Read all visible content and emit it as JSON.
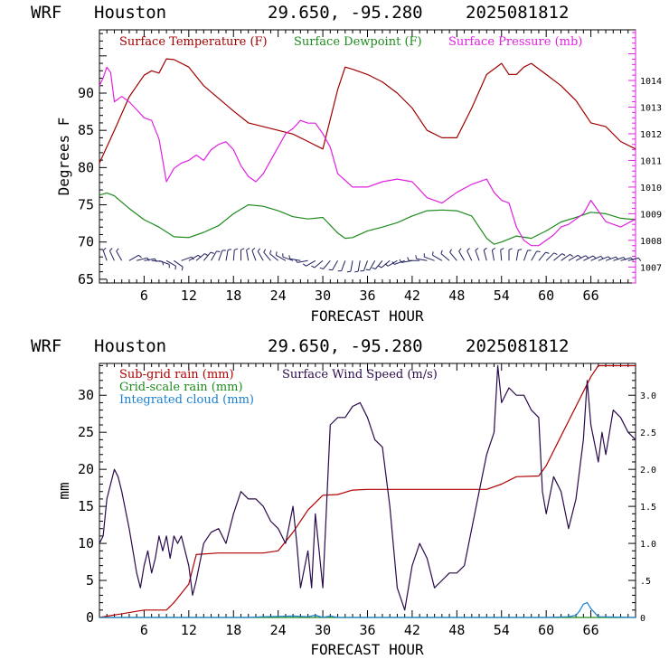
{
  "header": {
    "model": "WRF",
    "location": "Houston",
    "coords": "29.650, -95.280",
    "init": "2025081812"
  },
  "colors": {
    "temperature": "#a00000",
    "dewpoint": "#1e8a1e",
    "pressure": "#e020e0",
    "wind": "#2a0a4a",
    "subgrid_rain": "#b00000",
    "gridscale_rain": "#1e8a1e",
    "cloud": "#1a7fd0",
    "right_axis_top": "#e020e0"
  },
  "chart_data": [
    {
      "type": "line",
      "title": "",
      "xlabel": "FORECAST HOUR",
      "ylabel": "Degrees F",
      "xlim": [
        0,
        72
      ],
      "ylim": [
        64.5,
        98.5
      ],
      "y2lim": [
        1006.4,
        1015.9
      ],
      "xticks": [
        6,
        12,
        18,
        24,
        30,
        36,
        42,
        48,
        54,
        60,
        66
      ],
      "yticks": [
        65,
        70,
        75,
        80,
        85,
        90
      ],
      "y2ticks": [
        1007,
        1008,
        1009,
        1010,
        1011,
        1012,
        1013,
        1014
      ],
      "legend_placement": "top",
      "series": [
        {
          "name": "Surface Temperature (F)",
          "color_key": "temperature",
          "axis": "left",
          "x": [
            0,
            2,
            4,
            6,
            7,
            8,
            9,
            10,
            12,
            14,
            16,
            18,
            20,
            22,
            24,
            26,
            28,
            30,
            32,
            33,
            34,
            36,
            38,
            40,
            42,
            44,
            46,
            48,
            50,
            52,
            54,
            55,
            56,
            57,
            58,
            60,
            62,
            64,
            66,
            68,
            70,
            72
          ],
          "y": [
            80.6,
            85,
            89.5,
            92.4,
            93,
            92.7,
            94.6,
            94.5,
            93.5,
            91,
            89.3,
            87.6,
            86,
            85.5,
            85,
            84.5,
            83.5,
            82.5,
            90.5,
            93.5,
            93.2,
            92.5,
            91.5,
            90,
            88,
            85,
            84,
            84,
            88,
            92.5,
            94,
            92.5,
            92.5,
            93.5,
            94,
            92.5,
            91,
            89,
            86,
            85.5,
            83.5,
            82.5
          ]
        },
        {
          "name": "Surface Dewpoint (F)",
          "color_key": "dewpoint",
          "axis": "left",
          "x": [
            0,
            1,
            2,
            4,
            6,
            8,
            10,
            12,
            14,
            16,
            18,
            20,
            22,
            24,
            26,
            28,
            30,
            32,
            33,
            34,
            36,
            38,
            40,
            42,
            44,
            46,
            48,
            50,
            52,
            53,
            54,
            56,
            58,
            60,
            62,
            64,
            66,
            68,
            70,
            72
          ],
          "y": [
            76.3,
            76.6,
            76.2,
            74.5,
            73,
            72,
            70.7,
            70.6,
            71.3,
            72.2,
            73.8,
            75,
            74.8,
            74.2,
            73.4,
            73.1,
            73.3,
            71.2,
            70.5,
            70.6,
            71.5,
            72,
            72.6,
            73.5,
            74.2,
            74.3,
            74.2,
            73.5,
            70.5,
            69.7,
            70,
            70.8,
            70.5,
            71.5,
            72.7,
            73.3,
            74,
            73.8,
            73.2,
            73
          ]
        },
        {
          "name": "Surface Pressure (mb)",
          "color_key": "pressure",
          "axis": "right",
          "x": [
            0,
            0.5,
            1,
            1.5,
            2,
            3,
            4,
            5,
            6,
            7,
            8,
            9,
            10,
            11,
            12,
            13,
            14,
            15,
            16,
            17,
            18,
            19,
            20,
            21,
            22,
            23,
            24,
            25,
            26,
            27,
            28,
            29,
            30,
            31,
            32,
            34,
            36,
            38,
            40,
            42,
            44,
            46,
            48,
            50,
            52,
            53,
            54,
            55,
            56,
            57,
            58,
            59,
            60,
            61,
            62,
            63,
            64,
            65,
            66,
            67,
            68,
            70,
            72
          ],
          "y": [
            1013.8,
            1014.1,
            1014.5,
            1014.3,
            1013.2,
            1013.4,
            1013.2,
            1012.9,
            1012.6,
            1012.5,
            1011.8,
            1010.2,
            1010.7,
            1010.9,
            1011.0,
            1011.2,
            1011.0,
            1011.4,
            1011.6,
            1011.7,
            1011.4,
            1010.8,
            1010.4,
            1010.2,
            1010.5,
            1011.0,
            1011.5,
            1012.0,
            1012.2,
            1012.5,
            1012.4,
            1012.4,
            1012.0,
            1011.5,
            1010.5,
            1010.0,
            1010.0,
            1010.2,
            1010.3,
            1010.2,
            1009.6,
            1009.4,
            1009.8,
            1010.1,
            1010.3,
            1009.8,
            1009.5,
            1009.4,
            1008.5,
            1008.0,
            1007.8,
            1007.8,
            1008.0,
            1008.2,
            1008.5,
            1008.6,
            1008.8,
            1009.0,
            1009.5,
            1009.1,
            1008.7,
            1008.5,
            1008.8
          ]
        }
      ],
      "wind_barbs": {
        "y": 67.5,
        "angles_deg": [
          -20,
          -25,
          -30,
          60,
          75,
          80,
          95,
          110,
          120,
          125,
          70,
          60,
          50,
          40,
          30,
          20,
          10,
          5,
          0,
          -10,
          -20,
          -30,
          -40,
          -50,
          -60,
          -70,
          -80,
          -100,
          -120,
          -130,
          -140,
          -150,
          -160,
          -170,
          -170,
          -160,
          -150,
          -140,
          -130,
          -120,
          -110,
          -100,
          -90,
          -80,
          -70,
          -60,
          -50,
          -40,
          -30,
          -25,
          -20,
          -15,
          -10,
          -5,
          0,
          10,
          20,
          30,
          40,
          45,
          50,
          55,
          60,
          62,
          64,
          66,
          68,
          70,
          72,
          74,
          76
        ]
      }
    },
    {
      "type": "line",
      "title": "",
      "xlabel": "FORECAST HOUR",
      "ylabel": "mm",
      "xlim": [
        0,
        72
      ],
      "ylim": [
        0,
        34.3
      ],
      "y2lim": [
        0,
        3.43
      ],
      "xticks": [
        6,
        12,
        18,
        24,
        30,
        36,
        42,
        48,
        54,
        60,
        66
      ],
      "yticks": [
        0,
        5,
        10,
        15,
        20,
        25,
        30
      ],
      "y2ticks": [
        "0",
        ".5",
        "1.0",
        "1.5",
        "2.0",
        "2.5",
        "3.0"
      ],
      "legend_placement": "top-left",
      "series": [
        {
          "name": "Sub-grid rain (mm)",
          "color_key": "subgrid_rain",
          "axis": "left",
          "x": [
            0,
            6,
            9,
            10,
            12,
            13,
            16,
            22,
            24,
            26,
            28,
            30,
            32,
            34,
            36,
            40,
            44,
            48,
            52,
            54,
            56,
            59,
            60,
            62,
            64,
            66,
            67,
            70,
            72
          ],
          "y": [
            0,
            1.0,
            1.0,
            2.0,
            4.5,
            8.5,
            8.7,
            8.7,
            9.0,
            11.5,
            14.5,
            16.5,
            16.6,
            17.2,
            17.3,
            17.3,
            17.3,
            17.3,
            17.3,
            18.0,
            19.0,
            19.1,
            20.5,
            24.5,
            28.5,
            32.5,
            34.0,
            34.0,
            34.0
          ]
        },
        {
          "name": "Grid-scale rain (mm)",
          "color_key": "gridscale_rain",
          "axis": "left",
          "x": [
            0,
            72
          ],
          "y": [
            0,
            0
          ]
        },
        {
          "name": "Integrated cloud (mm)",
          "color_key": "cloud",
          "axis": "left",
          "x": [
            0,
            20,
            22,
            24,
            26,
            28,
            29,
            30,
            31,
            32,
            60,
            63,
            64,
            64.5,
            65,
            65.5,
            66,
            67,
            72
          ],
          "y": [
            0,
            0,
            0.1,
            0.15,
            0.2,
            0.1,
            0.3,
            0,
            0.2,
            0,
            0,
            0.1,
            0.3,
            0.9,
            1.8,
            2.0,
            1.2,
            0.1,
            0
          ]
        },
        {
          "name": "Surface Wind Speed (m/s)",
          "color_key": "wind",
          "axis": "right",
          "x": [
            0,
            0.5,
            1,
            2,
            2.5,
            3,
            4,
            5,
            5.5,
            6,
            6.5,
            7,
            7.5,
            8,
            8.5,
            9,
            9.5,
            10,
            10.5,
            11,
            11.5,
            12,
            12.5,
            13,
            14,
            15,
            16,
            17,
            18,
            19,
            20,
            21,
            22,
            23,
            24,
            25,
            26,
            26.5,
            27,
            28,
            28.5,
            29,
            29.5,
            30,
            31,
            32,
            33,
            34,
            35,
            36,
            37,
            38,
            39,
            40,
            41,
            42,
            43,
            44,
            45,
            46,
            47,
            48,
            49,
            50,
            51,
            52,
            53,
            53.5,
            54,
            55,
            56,
            57,
            58,
            59,
            59.5,
            60,
            61,
            62,
            63,
            64,
            65,
            65.5,
            66,
            67,
            67.5,
            68,
            69,
            70,
            71,
            72
          ],
          "y": [
            1.0,
            1.1,
            1.6,
            2.0,
            1.9,
            1.7,
            1.2,
            0.6,
            0.4,
            0.7,
            0.9,
            0.6,
            0.8,
            1.1,
            0.9,
            1.1,
            0.8,
            1.1,
            1.0,
            1.1,
            0.9,
            0.7,
            0.3,
            0.5,
            1.0,
            1.15,
            1.2,
            1.0,
            1.4,
            1.7,
            1.6,
            1.6,
            1.5,
            1.3,
            1.2,
            1.0,
            1.5,
            1.0,
            0.4,
            0.9,
            0.4,
            1.4,
            0.9,
            0.4,
            2.6,
            2.7,
            2.7,
            2.85,
            2.9,
            2.7,
            2.4,
            2.3,
            1.5,
            0.4,
            0.1,
            0.7,
            1.0,
            0.8,
            0.4,
            0.5,
            0.6,
            0.6,
            0.7,
            1.2,
            1.7,
            2.2,
            2.5,
            3.4,
            2.9,
            3.1,
            3.0,
            3.0,
            2.8,
            2.7,
            1.7,
            1.4,
            1.9,
            1.7,
            1.2,
            1.6,
            2.4,
            3.2,
            2.6,
            2.1,
            2.5,
            2.2,
            2.8,
            2.7,
            2.5,
            2.4
          ]
        }
      ]
    }
  ]
}
